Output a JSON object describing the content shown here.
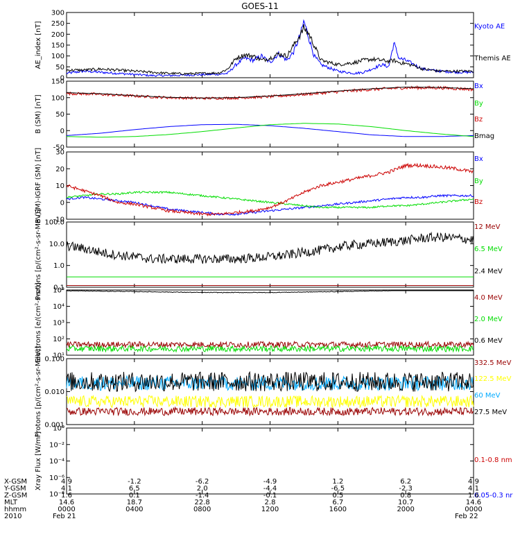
{
  "title": "GOES-11",
  "colors": {
    "blue": "#0000ff",
    "red": "#cc0000",
    "darkred": "#990000",
    "green": "#00dd00",
    "black": "#000000",
    "yellow": "#ffff00",
    "cyan": "#00aaff"
  },
  "chart_data": [
    {
      "type": "line",
      "ylabel": "AE_index [nT]",
      "ylim": [
        0,
        300
      ],
      "yticks": [
        "0",
        "50",
        "100",
        "150",
        "200",
        "250",
        "300"
      ],
      "series": [
        {
          "name": "Kyoto AE",
          "color": "blue",
          "x": [
            0,
            1,
            2,
            3,
            4,
            5,
            6,
            7,
            8,
            9,
            9.5,
            10,
            10.5,
            11,
            11.5,
            12,
            12.5,
            13,
            13.4,
            13.8,
            14,
            14.3,
            14.6,
            15,
            16,
            17,
            17.5,
            18,
            18.6,
            19,
            19.3,
            19.6,
            20,
            20.5,
            21,
            22,
            23,
            24
          ],
          "values": [
            20,
            30,
            25,
            20,
            15,
            10,
            10,
            12,
            14,
            16,
            20,
            60,
            90,
            80,
            100,
            70,
            110,
            80,
            120,
            200,
            260,
            180,
            100,
            60,
            30,
            20,
            25,
            40,
            60,
            50,
            160,
            90,
            80,
            60,
            40,
            30,
            25,
            25
          ]
        },
        {
          "name": "Themis AE",
          "color": "black",
          "x": [
            0,
            1,
            2,
            3,
            4,
            5,
            6,
            7,
            8,
            9,
            9.5,
            10,
            10.5,
            11,
            11.5,
            12,
            12.5,
            13,
            13.4,
            13.8,
            14,
            14.3,
            14.6,
            15,
            16,
            17,
            17.5,
            18,
            18.6,
            19,
            19.3,
            19.6,
            20,
            20.5,
            21,
            22,
            23,
            24
          ],
          "values": [
            35,
            35,
            40,
            35,
            30,
            25,
            20,
            18,
            20,
            22,
            40,
            90,
            105,
            100,
            80,
            90,
            110,
            100,
            150,
            200,
            230,
            200,
            150,
            80,
            60,
            70,
            80,
            85,
            80,
            75,
            80,
            70,
            65,
            55,
            40,
            30,
            30,
            30
          ]
        }
      ]
    },
    {
      "type": "line",
      "ylabel": "B (SM) [nT]",
      "ylim": [
        -50,
        150
      ],
      "yticks": [
        "-50",
        "0",
        "50",
        "100",
        "150"
      ],
      "series": [
        {
          "name": "Bx",
          "color": "blue",
          "x": [
            0,
            2,
            4,
            6,
            8,
            10,
            12,
            14,
            16,
            18,
            20,
            22,
            24
          ],
          "values": [
            -15,
            -8,
            3,
            12,
            18,
            19,
            15,
            7,
            -3,
            -13,
            -18,
            -18,
            -15
          ]
        },
        {
          "name": "By",
          "color": "green",
          "x": [
            0,
            2,
            4,
            6,
            8,
            10,
            12,
            14,
            16,
            18,
            20,
            22,
            24
          ],
          "values": [
            -18,
            -20,
            -18,
            -12,
            -3,
            8,
            18,
            22,
            20,
            12,
            0,
            -10,
            -18
          ]
        },
        {
          "name": "Bz",
          "color": "red",
          "x": [
            0,
            2,
            4,
            6,
            8,
            10,
            12,
            14,
            16,
            18,
            20,
            22,
            24
          ],
          "values": [
            113,
            110,
            105,
            100,
            98,
            99,
            103,
            110,
            118,
            125,
            130,
            130,
            125
          ]
        },
        {
          "name": "Bmag",
          "color": "black",
          "x": [
            0,
            2,
            4,
            6,
            8,
            10,
            12,
            14,
            16,
            18,
            20,
            22,
            24
          ],
          "values": [
            115,
            112,
            106,
            101,
            99,
            100,
            105,
            112,
            120,
            127,
            132,
            131,
            127
          ]
        }
      ]
    },
    {
      "type": "line",
      "ylabel": "B (SM)-IGRF (SM) [nT]",
      "ylim": [
        -10,
        30
      ],
      "yticks": [
        "-10",
        "0",
        "10",
        "20",
        "30"
      ],
      "series": [
        {
          "name": "Bx",
          "color": "blue",
          "x": [
            0,
            1,
            2,
            3,
            4,
            5,
            6,
            7,
            8,
            9,
            10,
            11,
            12,
            13,
            14,
            15,
            16,
            17,
            18,
            19,
            20,
            21,
            22,
            23,
            24
          ],
          "values": [
            2,
            3,
            2,
            1,
            0,
            -2,
            -4,
            -5,
            -6,
            -7,
            -7,
            -6,
            -5,
            -4,
            -3,
            -2,
            -1,
            0,
            1,
            2,
            3,
            3,
            4,
            4,
            4
          ]
        },
        {
          "name": "By",
          "color": "green",
          "x": [
            0,
            1,
            2,
            3,
            4,
            5,
            6,
            7,
            8,
            9,
            10,
            11,
            12,
            13,
            14,
            15,
            16,
            17,
            18,
            19,
            20,
            21,
            22,
            23,
            24
          ],
          "values": [
            3,
            4,
            5,
            5,
            6,
            6,
            6,
            5,
            4,
            3,
            2,
            1,
            0,
            -1,
            -2,
            -3,
            -3,
            -3,
            -3,
            -2,
            -2,
            -1,
            0,
            1,
            2
          ]
        },
        {
          "name": "Bz",
          "color": "red",
          "x": [
            0,
            1,
            2,
            3,
            4,
            5,
            6,
            7,
            8,
            9,
            10,
            11,
            12,
            13,
            14,
            15,
            16,
            17,
            18,
            19,
            20,
            21,
            22,
            23,
            24
          ],
          "values": [
            10,
            7,
            4,
            0,
            -1,
            -3,
            -5,
            -6,
            -7,
            -7,
            -6,
            -5,
            -3,
            1,
            6,
            10,
            12,
            14,
            16,
            18,
            22,
            22,
            21,
            20,
            18
          ]
        }
      ]
    },
    {
      "type": "line",
      "ylabel": "Protons [p/(cm²-s-sr-MeV)]",
      "yscale": "log",
      "ylim": [
        0.1,
        100
      ],
      "yticks": [
        "0.1",
        "1.0",
        "10.0",
        "100.0"
      ],
      "series": [
        {
          "name": "12 MeV",
          "color": "darkred",
          "x": [
            0,
            4,
            8,
            12,
            16,
            20,
            24
          ],
          "values": [
            0.12,
            0.12,
            0.12,
            0.12,
            0.12,
            0.12,
            0.12
          ]
        },
        {
          "name": "6.5 MeV",
          "color": "green",
          "x": [
            0,
            4,
            8,
            12,
            16,
            20,
            24
          ],
          "values": [
            0.3,
            0.3,
            0.3,
            0.3,
            0.3,
            0.3,
            0.3
          ]
        },
        {
          "name": "2.4 MeV",
          "color": "black",
          "x": [
            0,
            1,
            2,
            3,
            4,
            5,
            6,
            7,
            8,
            9,
            10,
            11,
            12,
            13,
            14,
            15,
            16,
            17,
            18,
            19,
            20,
            21,
            22,
            23,
            24
          ],
          "values": [
            8,
            6,
            4,
            3,
            2.5,
            2,
            2,
            2,
            2,
            2,
            2,
            2.2,
            2.5,
            3,
            4,
            5,
            7,
            9,
            10,
            12,
            14,
            18,
            20,
            18,
            15
          ]
        }
      ]
    },
    {
      "type": "line",
      "ylabel": "Electrons [e/(cm²-s-sr)]",
      "yscale": "log",
      "ylim": [
        10,
        100000
      ],
      "yticks": [
        "10¹",
        "10²",
        "10³",
        "10⁴",
        "10⁵"
      ],
      "series": [
        {
          "name": "4.0 MeV",
          "color": "darkred",
          "x": [
            0,
            4,
            8,
            12,
            16,
            20,
            24
          ],
          "values": [
            45,
            45,
            45,
            45,
            45,
            45,
            45
          ]
        },
        {
          "name": "2.0 MeV",
          "color": "green",
          "x": [
            0,
            4,
            8,
            12,
            16,
            20,
            24
          ],
          "values": [
            25,
            25,
            25,
            25,
            25,
            25,
            25
          ]
        },
        {
          "name": "0.6 MeV",
          "color": "black",
          "x": [
            0,
            4,
            8,
            12,
            16,
            20,
            24
          ],
          "values": [
            90000,
            80000,
            70000,
            70000,
            80000,
            95000,
            100000
          ]
        }
      ]
    },
    {
      "type": "line",
      "ylabel": "Protons [p/(cm²-s-sr-MeV)]",
      "yscale": "log",
      "ylim": [
        0.001,
        0.1
      ],
      "yticks": [
        "0.001",
        "0.010",
        "0.100"
      ],
      "series": [
        {
          "name": "332.5 MeV",
          "color": "darkred",
          "x": [
            0,
            6,
            12,
            18,
            24
          ],
          "values": [
            0.0025,
            0.0025,
            0.0025,
            0.0025,
            0.0025
          ]
        },
        {
          "name": "122.5 MeV",
          "color": "yellow",
          "x": [
            0,
            6,
            12,
            18,
            24
          ],
          "values": [
            0.005,
            0.005,
            0.005,
            0.005,
            0.005
          ]
        },
        {
          "name": "60 MeV",
          "color": "cyan",
          "x": [
            0,
            6,
            12,
            18,
            24
          ],
          "values": [
            0.018,
            0.018,
            0.018,
            0.018,
            0.018
          ]
        },
        {
          "name": "27.5 MeV",
          "color": "black",
          "x": [
            0,
            6,
            12,
            18,
            24
          ],
          "values": [
            0.02,
            0.02,
            0.02,
            0.02,
            0.02
          ]
        }
      ]
    },
    {
      "type": "line",
      "ylabel": "Xray Flux [W/m²]",
      "yscale": "log",
      "ylim": [
        1e-09,
        1
      ],
      "yticks": [
        "10⁻⁸",
        "10⁻⁶",
        "10⁻⁴",
        "10⁻²",
        "10⁰"
      ],
      "series": [
        {
          "name": "0.1-0.8 nm",
          "color": "red",
          "x": [],
          "values": []
        },
        {
          "name": "0.05-0.3 nr",
          "color": "blue",
          "x": [],
          "values": []
        }
      ]
    }
  ],
  "xaxis": {
    "tick_hours": [
      0,
      4,
      8,
      12,
      16,
      20,
      24
    ],
    "rows": [
      {
        "label": "X-GSM",
        "values": [
          "4.9",
          "-1.2",
          "-6.2",
          "-4.9",
          "1.2",
          "6.2",
          "4.9"
        ]
      },
      {
        "label": "Y-GSM",
        "values": [
          "4.1",
          "6.5",
          "2.0",
          "-4.4",
          "-6.5",
          "-2.3",
          "4.1"
        ]
      },
      {
        "label": "Z-GSM",
        "values": [
          "1.6",
          "0.1",
          "-1.4",
          "-0.1",
          "0.5",
          "0.8",
          "1.6"
        ]
      },
      {
        "label": "MLT",
        "values": [
          "14.6",
          "18.7",
          "22.8",
          "2.8",
          "6.7",
          "10.7",
          "14.6"
        ]
      },
      {
        "label": "hhmm",
        "values": [
          "0000",
          "0400",
          "0800",
          "1200",
          "1600",
          "2000",
          "0000"
        ]
      },
      {
        "label": "2010",
        "values": [
          "Feb 21",
          "",
          "",
          "",
          "",
          "",
          "Feb 22"
        ]
      }
    ]
  }
}
